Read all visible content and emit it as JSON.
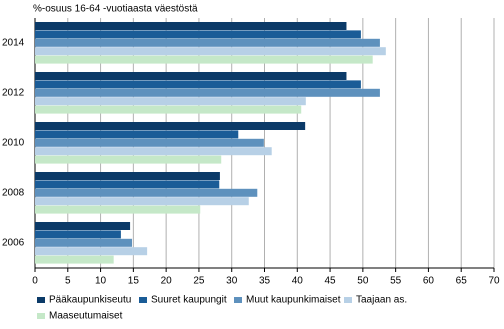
{
  "chart_data": {
    "type": "bar",
    "orientation": "horizontal",
    "title": "%-osuus 16-64 -vuotiaasta väestöstä",
    "categories": [
      "2014",
      "2012",
      "2010",
      "2008",
      "2006"
    ],
    "series": [
      {
        "name": "Pääkaupunkiseutu",
        "color": "#0b3a68",
        "values": [
          47.5,
          47.5,
          41.2,
          28.2,
          14.5
        ]
      },
      {
        "name": "Suuret kaupungit",
        "color": "#1a5c97",
        "values": [
          49.7,
          49.7,
          31,
          28.1,
          13.1
        ]
      },
      {
        "name": "Muut kaupunkimaiset",
        "color": "#5e91bd",
        "values": [
          52.6,
          52.6,
          34.9,
          33.9,
          14.8
        ]
      },
      {
        "name": "Taajaan as.",
        "color": "#b7d0e6",
        "values": [
          53.5,
          41.3,
          36.1,
          32.6,
          17.1
        ]
      },
      {
        "name": "Maaseutumaiset",
        "color": "#c5e8c8",
        "values": [
          51.5,
          40.6,
          28.4,
          25.2,
          12
        ]
      }
    ],
    "xlim": [
      0,
      70
    ],
    "xticks": [
      0,
      5,
      10,
      15,
      20,
      25,
      30,
      35,
      40,
      45,
      50,
      55,
      60,
      65,
      70
    ],
    "grid": true
  }
}
